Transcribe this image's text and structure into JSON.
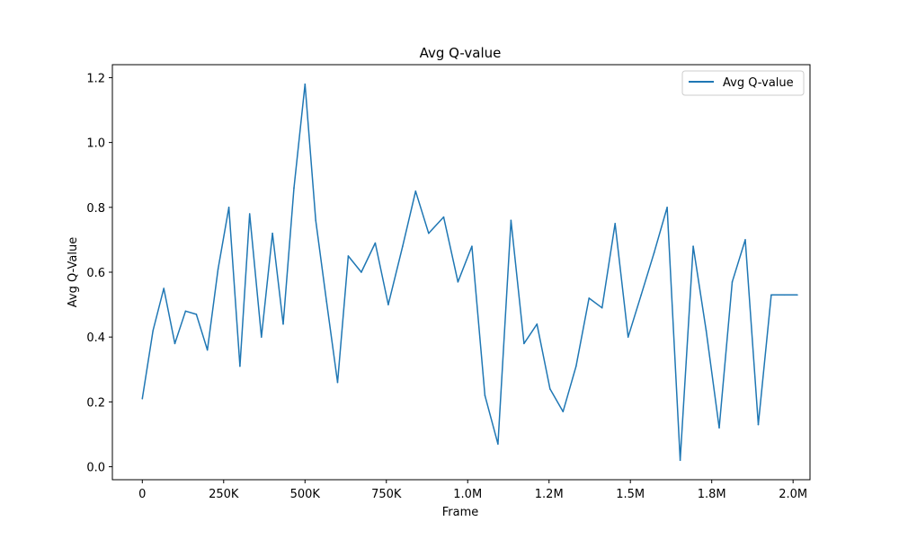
{
  "chart_data": {
    "type": "line",
    "title": "Avg Q-value",
    "xlabel": "Frame",
    "ylabel": "Avg Q-Value",
    "xlim": [
      -92000,
      2052000
    ],
    "ylim": [
      -0.04,
      1.24
    ],
    "x_ticks": [
      {
        "value": 0,
        "label": "0"
      },
      {
        "value": 250000,
        "label": "250K"
      },
      {
        "value": 500000,
        "label": "500K"
      },
      {
        "value": 750000,
        "label": "750K"
      },
      {
        "value": 1000000,
        "label": "1.0M"
      },
      {
        "value": 1250000,
        "label": "1.2M"
      },
      {
        "value": 1500000,
        "label": "1.5M"
      },
      {
        "value": 1750000,
        "label": "1.8M"
      },
      {
        "value": 2000000,
        "label": "2.0M"
      }
    ],
    "y_ticks": [
      {
        "value": 0.0,
        "label": "0.0"
      },
      {
        "value": 0.2,
        "label": "0.2"
      },
      {
        "value": 0.4,
        "label": "0.4"
      },
      {
        "value": 0.6,
        "label": "0.6"
      },
      {
        "value": 0.8,
        "label": "0.8"
      },
      {
        "value": 1.0,
        "label": "1.0"
      },
      {
        "value": 1.2,
        "label": "1.2"
      }
    ],
    "grid": false,
    "legend_position": "upper right",
    "series": [
      {
        "name": "Avg Q-value",
        "color": "#1f77b4",
        "x": [
          0,
          33000,
          66000,
          100000,
          133000,
          166000,
          200000,
          233000,
          266000,
          300000,
          330000,
          366000,
          400000,
          433000,
          466000,
          500000,
          533000,
          566000,
          600000,
          633000,
          673000,
          716000,
          756000,
          800000,
          840000,
          880000,
          926000,
          970000,
          1013000,
          1053000,
          1093000,
          1133000,
          1173000,
          1213000,
          1253000,
          1293000,
          1333000,
          1373000,
          1413000,
          1453000,
          1493000,
          1533000,
          1573000,
          1613000,
          1653000,
          1693000,
          1733000,
          1773000,
          1813000,
          1853000,
          1893000,
          1933000,
          1973000,
          2013000
        ],
        "y": [
          0.21,
          0.42,
          0.55,
          0.38,
          0.48,
          0.47,
          0.36,
          0.61,
          0.8,
          0.31,
          0.78,
          0.4,
          0.72,
          0.44,
          0.86,
          1.18,
          0.76,
          0.51,
          0.26,
          0.65,
          0.6,
          0.69,
          0.5,
          0.68,
          0.85,
          0.72,
          0.77,
          0.57,
          0.68,
          0.22,
          0.07,
          0.76,
          0.38,
          0.44,
          0.24,
          0.17,
          0.31,
          0.52,
          0.49,
          0.75,
          0.4,
          0.53,
          0.66,
          0.8,
          0.02,
          0.68,
          0.42,
          0.12,
          0.57,
          0.7,
          0.13,
          0.53,
          0.53,
          0.53
        ]
      }
    ]
  }
}
